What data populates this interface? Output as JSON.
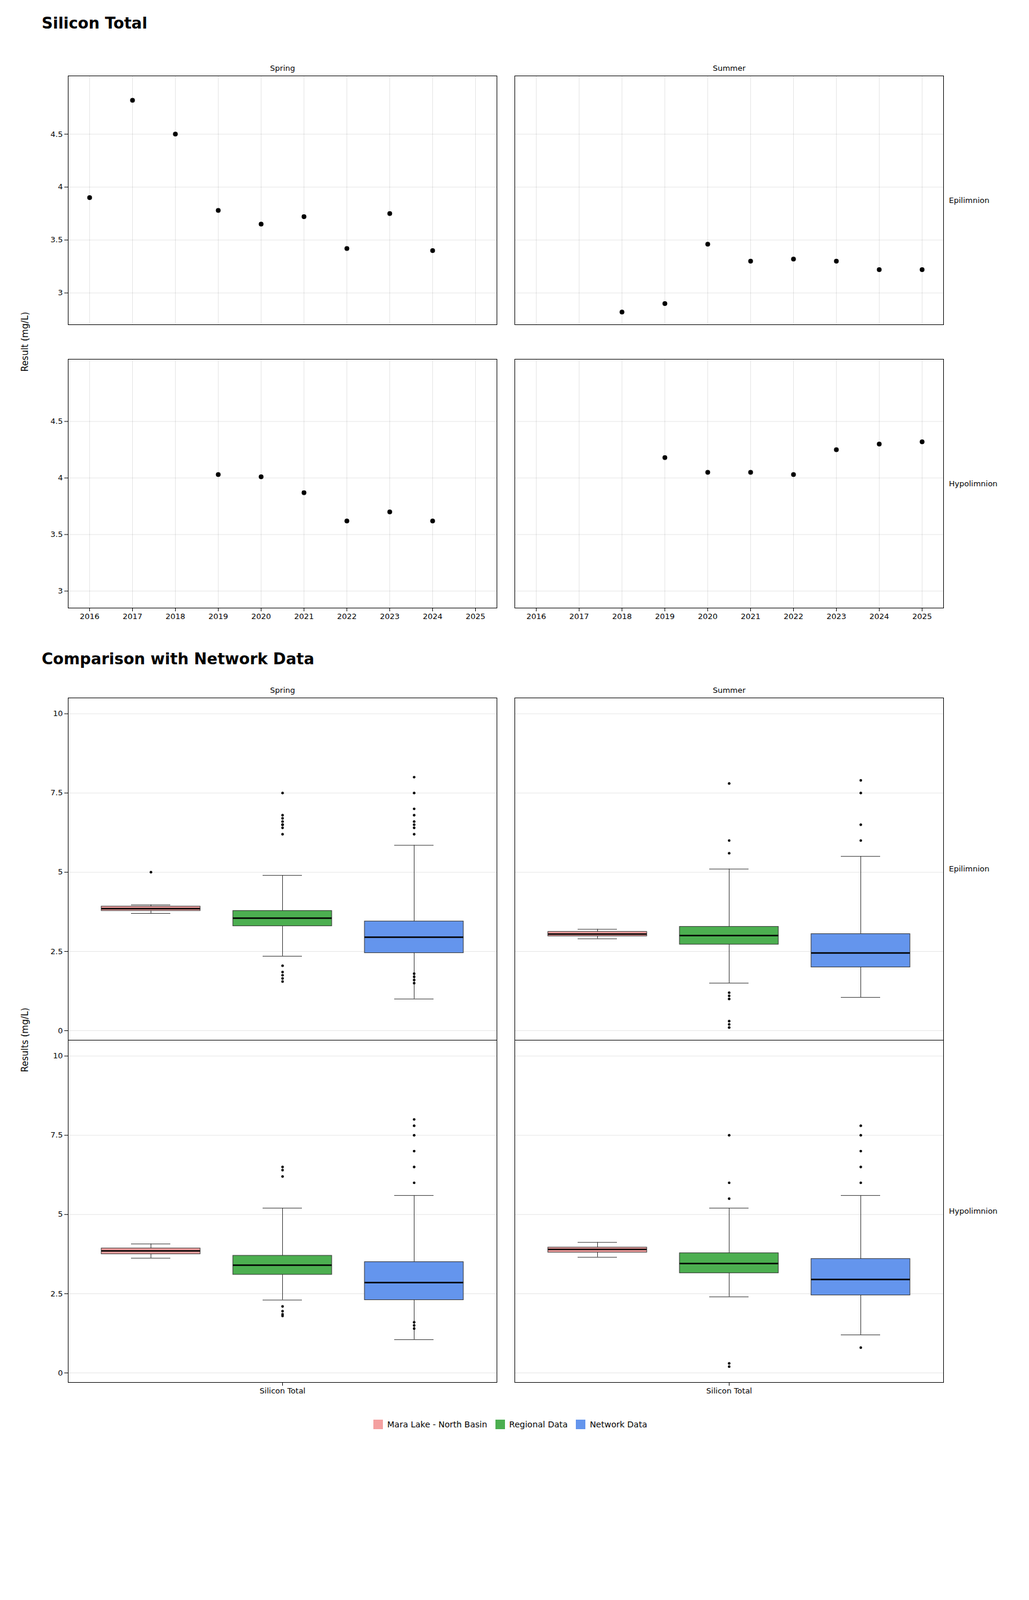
{
  "chart_data": [
    {
      "type": "scatter",
      "title": "Silicon Total",
      "ylabel": "Result (mg/L)",
      "color": "#000000",
      "grid": true,
      "columns": [
        "Spring",
        "Summer"
      ],
      "xlim": [
        2015.5,
        2025.5
      ],
      "xticks": [
        2016,
        2017,
        2018,
        2019,
        2020,
        2021,
        2022,
        2023,
        2024,
        2025
      ],
      "rows": [
        {
          "name": "Epilimnion",
          "ylim": [
            2.7,
            5.05
          ],
          "yticks": [
            3.0,
            3.5,
            4.0,
            4.5
          ]
        },
        {
          "name": "Hypolimnion",
          "ylim": [
            2.85,
            5.05
          ],
          "yticks": [
            3.0,
            3.5,
            4.0,
            4.5
          ]
        }
      ],
      "panels": [
        {
          "column": "Spring",
          "row": "Epilimnion",
          "x": [
            2016,
            2017,
            2018,
            2019,
            2020,
            2021,
            2022,
            2023,
            2024
          ],
          "y": [
            3.9,
            4.82,
            4.5,
            3.78,
            3.65,
            3.72,
            3.42,
            3.75,
            3.4
          ]
        },
        {
          "column": "Summer",
          "row": "Epilimnion",
          "x": [
            2018,
            2019,
            2020,
            2021,
            2022,
            2023,
            2024,
            2025
          ],
          "y": [
            2.82,
            2.9,
            3.46,
            3.3,
            3.32,
            3.3,
            3.22,
            3.22
          ]
        },
        {
          "column": "Spring",
          "row": "Hypolimnion",
          "x": [
            2019,
            2020,
            2021,
            2022,
            2023,
            2024
          ],
          "y": [
            4.03,
            4.01,
            3.87,
            3.62,
            3.7,
            3.62
          ]
        },
        {
          "column": "Summer",
          "row": "Hypolimnion",
          "x": [
            2019,
            2020,
            2021,
            2022,
            2023,
            2024,
            2025
          ],
          "y": [
            4.18,
            4.05,
            4.05,
            4.03,
            4.25,
            4.3,
            4.32
          ]
        }
      ]
    },
    {
      "type": "box",
      "title": "Comparison with Network Data",
      "ylabel": "Results (mg/L)",
      "grid": true,
      "legend": "bottom",
      "categories": [
        "Silicon Total"
      ],
      "columns": [
        "Spring",
        "Summer"
      ],
      "rows": [
        "Epilimnion",
        "Hypolimnion"
      ],
      "ylim": [
        -0.3,
        10.5
      ],
      "yticks": [
        0.0,
        2.5,
        5.0,
        7.5,
        10.0
      ],
      "series": [
        {
          "name": "Mara Lake - North Basin",
          "color": "#F4A0A0",
          "values": [
            {
              "column": "Spring",
              "row": "Epilimnion",
              "med": 3.85,
              "q1": 3.78,
              "q3": 3.92,
              "whislo": 3.7,
              "whishi": 3.97,
              "fliers_above": [
                5.0
              ],
              "fliers_below": []
            },
            {
              "column": "Summer",
              "row": "Epilimnion",
              "med": 3.05,
              "q1": 2.98,
              "q3": 3.12,
              "whislo": 2.9,
              "whishi": 3.2,
              "fliers_above": [],
              "fliers_below": []
            },
            {
              "column": "Spring",
              "row": "Hypolimnion",
              "med": 3.85,
              "q1": 3.75,
              "q3": 3.93,
              "whislo": 3.62,
              "whishi": 4.07,
              "fliers_above": [],
              "fliers_below": []
            },
            {
              "column": "Summer",
              "row": "Hypolimnion",
              "med": 3.9,
              "q1": 3.8,
              "q3": 3.96,
              "whislo": 3.65,
              "whishi": 4.12,
              "fliers_above": [],
              "fliers_below": []
            }
          ]
        },
        {
          "name": "Regional Data",
          "color": "#4CAF50",
          "values": [
            {
              "column": "Spring",
              "row": "Epilimnion",
              "med": 3.55,
              "q1": 3.3,
              "q3": 3.78,
              "whislo": 2.35,
              "whishi": 4.9,
              "fliers_above": [
                6.2,
                6.4,
                6.5,
                6.5,
                6.6,
                6.7,
                6.8,
                7.5
              ],
              "fliers_below": [
                2.05,
                1.85,
                1.75,
                1.65,
                1.55
              ]
            },
            {
              "column": "Summer",
              "row": "Epilimnion",
              "med": 3.0,
              "q1": 2.72,
              "q3": 3.28,
              "whislo": 1.5,
              "whishi": 5.1,
              "fliers_above": [
                5.6,
                6.0,
                7.8
              ],
              "fliers_below": [
                0.1,
                0.2,
                0.3,
                1.0,
                1.1,
                1.2
              ]
            },
            {
              "column": "Spring",
              "row": "Hypolimnion",
              "med": 3.4,
              "q1": 3.1,
              "q3": 3.7,
              "whislo": 2.3,
              "whishi": 5.2,
              "fliers_above": [
                6.2,
                6.4,
                6.5
              ],
              "fliers_below": [
                2.1,
                1.95,
                1.85,
                1.8
              ]
            },
            {
              "column": "Summer",
              "row": "Hypolimnion",
              "med": 3.45,
              "q1": 3.15,
              "q3": 3.78,
              "whislo": 2.4,
              "whishi": 5.2,
              "fliers_above": [
                5.5,
                6.0,
                7.5
              ],
              "fliers_below": [
                0.2,
                0.3
              ]
            }
          ]
        },
        {
          "name": "Network Data",
          "color": "#6495ED",
          "values": [
            {
              "column": "Spring",
              "row": "Epilimnion",
              "med": 2.95,
              "q1": 2.45,
              "q3": 3.45,
              "whislo": 1.0,
              "whishi": 5.85,
              "fliers_above": [
                6.2,
                6.4,
                6.5,
                6.6,
                6.8,
                7.0,
                7.5,
                8.0
              ],
              "fliers_below": [
                1.5,
                1.6,
                1.7,
                1.8
              ]
            },
            {
              "column": "Summer",
              "row": "Epilimnion",
              "med": 2.45,
              "q1": 2.0,
              "q3": 3.05,
              "whislo": 1.05,
              "whishi": 5.5,
              "fliers_above": [
                6.0,
                6.5,
                7.5,
                7.9
              ],
              "fliers_below": []
            },
            {
              "column": "Spring",
              "row": "Hypolimnion",
              "med": 2.85,
              "q1": 2.3,
              "q3": 3.5,
              "whislo": 1.05,
              "whishi": 5.6,
              "fliers_above": [
                6.0,
                6.5,
                7.0,
                7.5,
                7.8,
                8.0
              ],
              "fliers_below": [
                1.4,
                1.5,
                1.6
              ]
            },
            {
              "column": "Summer",
              "row": "Hypolimnion",
              "med": 2.95,
              "q1": 2.45,
              "q3": 3.6,
              "whislo": 1.2,
              "whishi": 5.6,
              "fliers_above": [
                6.0,
                6.5,
                7.0,
                7.5,
                7.8
              ],
              "fliers_below": [
                0.8
              ]
            }
          ]
        }
      ]
    }
  ]
}
